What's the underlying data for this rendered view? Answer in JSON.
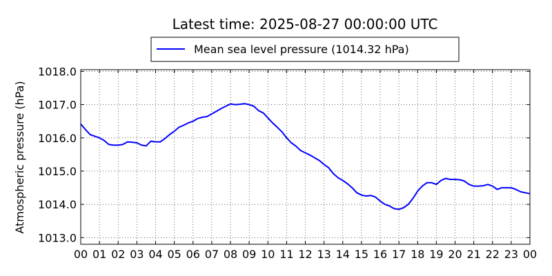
{
  "chart_data": {
    "type": "line",
    "title": "Latest time: 2025-08-27 00:00:00 UTC",
    "xlabel": "",
    "ylabel": "Atmospheric pressure (hPa)",
    "xlim": [
      0,
      24
    ],
    "ylim": [
      1012.8,
      1018.05
    ],
    "grid": true,
    "legend_position": "top-center",
    "x_tick_labels": [
      "00",
      "01",
      "02",
      "03",
      "04",
      "05",
      "06",
      "07",
      "08",
      "09",
      "10",
      "11",
      "12",
      "13",
      "14",
      "15",
      "16",
      "17",
      "18",
      "19",
      "20",
      "21",
      "22",
      "23",
      "00"
    ],
    "y_tick_labels": [
      "1013.0",
      "1014.0",
      "1015.0",
      "1016.0",
      "1017.0",
      "1018.0"
    ],
    "y_ticks": [
      1013.0,
      1014.0,
      1015.0,
      1016.0,
      1017.0,
      1018.0
    ],
    "series": [
      {
        "name": "Mean sea level pressure (1014.32 hPa)",
        "color": "#0000ff",
        "x": [
          0.0,
          0.25,
          0.5,
          0.75,
          1.0,
          1.25,
          1.5,
          1.75,
          2.0,
          2.25,
          2.5,
          2.75,
          3.0,
          3.25,
          3.5,
          3.75,
          4.0,
          4.25,
          4.5,
          4.75,
          5.0,
          5.25,
          5.5,
          5.75,
          6.0,
          6.25,
          6.5,
          6.75,
          7.0,
          7.25,
          7.5,
          7.75,
          8.0,
          8.25,
          8.5,
          8.75,
          9.0,
          9.25,
          9.5,
          9.75,
          10.0,
          10.25,
          10.5,
          10.75,
          11.0,
          11.25,
          11.5,
          11.75,
          12.0,
          12.25,
          12.5,
          12.75,
          13.0,
          13.25,
          13.5,
          13.75,
          14.0,
          14.25,
          14.5,
          14.75,
          15.0,
          15.25,
          15.5,
          15.75,
          16.0,
          16.25,
          16.5,
          16.75,
          17.0,
          17.25,
          17.5,
          17.75,
          18.0,
          18.25,
          18.5,
          18.75,
          19.0,
          19.25,
          19.5,
          19.75,
          20.0,
          20.25,
          20.5,
          20.75,
          21.0,
          21.25,
          21.5,
          21.75,
          22.0,
          22.25,
          22.5,
          22.75,
          23.0,
          23.25,
          23.5,
          23.75,
          24.0
        ],
        "values": [
          1016.42,
          1016.25,
          1016.1,
          1016.05,
          1016.0,
          1015.92,
          1015.8,
          1015.78,
          1015.78,
          1015.8,
          1015.88,
          1015.87,
          1015.85,
          1015.78,
          1015.76,
          1015.9,
          1015.88,
          1015.88,
          1015.98,
          1016.1,
          1016.2,
          1016.32,
          1016.38,
          1016.45,
          1016.5,
          1016.58,
          1016.62,
          1016.64,
          1016.72,
          1016.8,
          1016.88,
          1016.95,
          1017.02,
          1017.0,
          1017.01,
          1017.03,
          1017.0,
          1016.95,
          1016.82,
          1016.75,
          1016.6,
          1016.45,
          1016.32,
          1016.18,
          1016.0,
          1015.85,
          1015.75,
          1015.62,
          1015.55,
          1015.48,
          1015.4,
          1015.32,
          1015.2,
          1015.1,
          1014.92,
          1014.8,
          1014.72,
          1014.62,
          1014.5,
          1014.35,
          1014.28,
          1014.25,
          1014.27,
          1014.22,
          1014.1,
          1014.0,
          1013.95,
          1013.87,
          1013.85,
          1013.9,
          1014.0,
          1014.18,
          1014.4,
          1014.55,
          1014.65,
          1014.65,
          1014.6,
          1014.72,
          1014.78,
          1014.75,
          1014.75,
          1014.74,
          1014.7,
          1014.6,
          1014.55,
          1014.55,
          1014.56,
          1014.6,
          1014.55,
          1014.45,
          1014.5,
          1014.5,
          1014.5,
          1014.45,
          1014.38,
          1014.35,
          1014.32
        ]
      }
    ]
  }
}
